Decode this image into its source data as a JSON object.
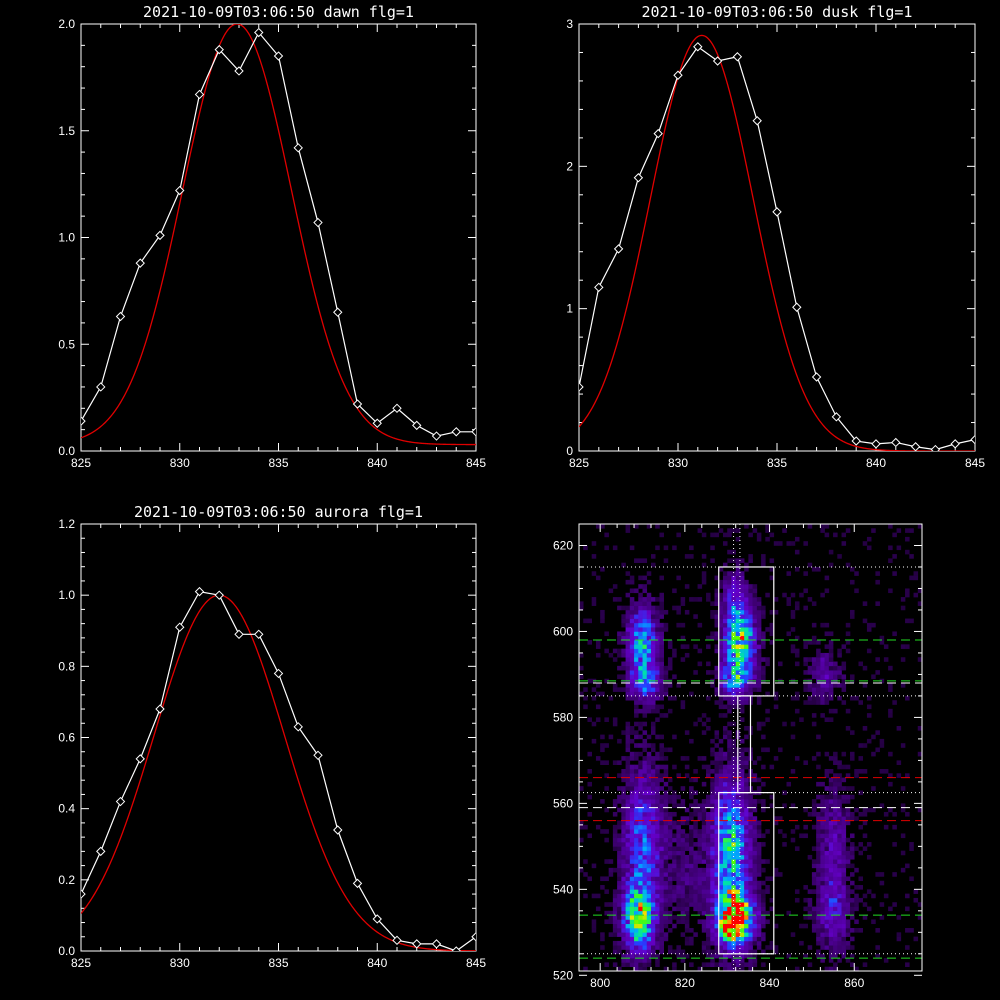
{
  "chart_data": [
    {
      "type": "line",
      "title": "2021-10-09T03:06:50 dawn flg=1",
      "xlim": [
        825,
        845
      ],
      "ylim": [
        0,
        2.0
      ],
      "xticks": [
        825,
        830,
        835,
        840,
        845
      ],
      "yticks": [
        0.0,
        0.5,
        1.0,
        1.5,
        2.0
      ],
      "ytick_labels": [
        "0.0",
        "0.5",
        "1.0",
        "1.5",
        "2.0"
      ],
      "series": [
        {
          "kind": "data",
          "color": "#ffffff",
          "marker": "diamond",
          "x": [
            825,
            826,
            827,
            828,
            829,
            830,
            831,
            832,
            833,
            834,
            835,
            836,
            837,
            838,
            839,
            840,
            841,
            842,
            843,
            844,
            845
          ],
          "y": [
            0.14,
            0.3,
            0.63,
            0.88,
            1.01,
            1.22,
            1.67,
            1.88,
            1.78,
            1.96,
            1.85,
            1.42,
            1.07,
            0.65,
            0.22,
            0.13,
            0.2,
            0.12,
            0.07,
            0.09,
            0.09
          ]
        },
        {
          "kind": "fit",
          "color": "#e00000",
          "model": "gaussian",
          "amplitude": 1.97,
          "center": 832.9,
          "sigma": 2.75,
          "offset": 0.03
        }
      ]
    },
    {
      "type": "line",
      "title": "2021-10-09T03:06:50 dusk flg=1",
      "xlim": [
        825,
        845
      ],
      "ylim": [
        0,
        3
      ],
      "xticks": [
        825,
        830,
        835,
        840,
        845
      ],
      "yticks": [
        0,
        1,
        2,
        3
      ],
      "ytick_labels": [
        "0",
        "1",
        "2",
        "3"
      ],
      "series": [
        {
          "kind": "data",
          "color": "#ffffff",
          "marker": "diamond",
          "x": [
            825,
            826,
            827,
            828,
            829,
            830,
            831,
            832,
            833,
            834,
            835,
            836,
            837,
            838,
            839,
            840,
            841,
            842,
            843,
            844,
            845
          ],
          "y": [
            0.45,
            1.15,
            1.42,
            1.92,
            2.23,
            2.64,
            2.84,
            2.74,
            2.77,
            2.32,
            1.68,
            1.01,
            0.52,
            0.24,
            0.07,
            0.05,
            0.06,
            0.03,
            0.01,
            0.05,
            0.08
          ]
        },
        {
          "kind": "fit",
          "color": "#e00000",
          "model": "gaussian",
          "amplitude": 2.92,
          "center": 831.2,
          "sigma": 2.6,
          "offset": 0.0
        }
      ]
    },
    {
      "type": "line",
      "title": "2021-10-09T03:06:50 aurora flg=1",
      "xlim": [
        825,
        845
      ],
      "ylim": [
        0,
        1.2
      ],
      "xticks": [
        825,
        830,
        835,
        840,
        845
      ],
      "yticks": [
        0.0,
        0.2,
        0.4,
        0.6,
        0.8,
        1.0,
        1.2
      ],
      "ytick_labels": [
        "0.0",
        "0.2",
        "0.4",
        "0.6",
        "0.8",
        "1.0",
        "1.2"
      ],
      "series": [
        {
          "kind": "data",
          "color": "#ffffff",
          "marker": "diamond",
          "x": [
            825,
            826,
            827,
            828,
            829,
            830,
            831,
            832,
            833,
            834,
            835,
            836,
            837,
            838,
            839,
            840,
            841,
            842,
            843,
            844,
            845
          ],
          "y": [
            0.16,
            0.28,
            0.42,
            0.54,
            0.68,
            0.91,
            1.01,
            1.0,
            0.89,
            0.89,
            0.78,
            0.63,
            0.55,
            0.34,
            0.19,
            0.09,
            0.03,
            0.02,
            0.02,
            0.0,
            0.04
          ]
        },
        {
          "kind": "fit",
          "color": "#e00000",
          "model": "gaussian",
          "amplitude": 1.0,
          "center": 832.0,
          "sigma": 3.3,
          "offset": 0.0
        }
      ]
    },
    {
      "type": "heatmap",
      "title": "",
      "xlim": [
        795,
        876
      ],
      "ylim": [
        521,
        625
      ],
      "xticks": [
        800,
        820,
        840,
        860
      ],
      "yticks": [
        520,
        540,
        560,
        580,
        600,
        620
      ],
      "colormap": "rainbow",
      "blobs": [
        {
          "x": 809,
          "y": 533,
          "sx": 2.5,
          "sy": 5,
          "amp": 0.65
        },
        {
          "x": 810,
          "y": 550,
          "sx": 3,
          "sy": 12,
          "amp": 0.4
        },
        {
          "x": 810,
          "y": 597,
          "sx": 2.5,
          "sy": 6,
          "amp": 0.5
        },
        {
          "x": 811,
          "y": 588,
          "sx": 2.5,
          "sy": 3,
          "amp": 0.3
        },
        {
          "x": 832,
          "y": 533,
          "sx": 2.8,
          "sy": 4,
          "amp": 1.0
        },
        {
          "x": 831,
          "y": 548,
          "sx": 3,
          "sy": 12,
          "amp": 0.6
        },
        {
          "x": 833,
          "y": 598,
          "sx": 2.5,
          "sy": 5,
          "amp": 0.7
        },
        {
          "x": 832,
          "y": 589,
          "sx": 2.5,
          "sy": 3,
          "amp": 0.45
        },
        {
          "x": 832,
          "y": 608,
          "sx": 2,
          "sy": 4,
          "amp": 0.3
        },
        {
          "x": 855,
          "y": 535,
          "sx": 2.5,
          "sy": 6,
          "amp": 0.28
        },
        {
          "x": 855,
          "y": 552,
          "sx": 2.5,
          "sy": 8,
          "amp": 0.2
        },
        {
          "x": 853,
          "y": 590,
          "sx": 2.5,
          "sy": 4,
          "amp": 0.18
        },
        {
          "x": 820,
          "y": 545,
          "sx": 4,
          "sy": 10,
          "amp": 0.1
        }
      ],
      "boxes": [
        {
          "x0": 828,
          "x1": 841,
          "y0": 525,
          "y1": 562.5,
          "color": "#ffffff"
        },
        {
          "x0": 828,
          "x1": 841,
          "y0": 585,
          "y1": 615,
          "color": "#ffffff"
        },
        {
          "x0": 832.5,
          "x1": 835.5,
          "y0": 562.5,
          "y1": 585,
          "color": "#ffffff"
        }
      ],
      "hlines": [
        {
          "y": 615,
          "color": "#ffffff",
          "style": "dotted"
        },
        {
          "y": 585,
          "color": "#ffffff",
          "style": "dotted"
        },
        {
          "y": 562.5,
          "color": "#ffffff",
          "style": "dotted"
        },
        {
          "y": 525,
          "color": "#ffffff",
          "style": "dotted"
        },
        {
          "y": 598,
          "color": "#22dd22",
          "style": "dashed"
        },
        {
          "y": 588.5,
          "color": "#22dd22",
          "style": "dashed"
        },
        {
          "y": 588,
          "color": "#ffffff",
          "style": "dashed"
        },
        {
          "y": 566,
          "color": "#e00000",
          "style": "dashed"
        },
        {
          "y": 559,
          "color": "#ffffff",
          "style": "dashed"
        },
        {
          "y": 556,
          "color": "#e00000",
          "style": "dashed"
        },
        {
          "y": 534,
          "color": "#22dd22",
          "style": "dashed"
        },
        {
          "y": 524,
          "color": "#22dd22",
          "style": "dashed"
        }
      ],
      "vlines": [
        {
          "x": 831.5,
          "color": "#ffffff",
          "style": "dotted"
        },
        {
          "x": 833,
          "color": "#ffffff",
          "style": "dotted"
        }
      ]
    }
  ]
}
